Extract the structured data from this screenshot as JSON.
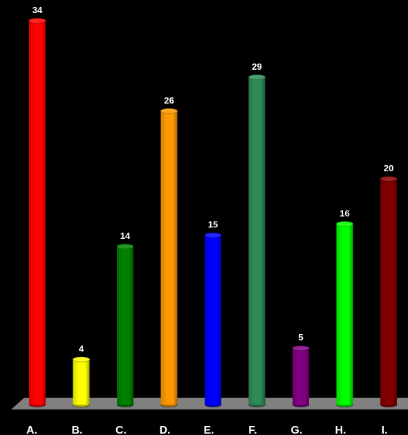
{
  "chart_data": {
    "type": "bar",
    "style": "3d-cylinder",
    "categories": [
      "A.",
      "B.",
      "C.",
      "D.",
      "E.",
      "F.",
      "G.",
      "H.",
      "I."
    ],
    "values": [
      34,
      4,
      14,
      26,
      15,
      29,
      5,
      16,
      20
    ],
    "colors": [
      "#ff0000",
      "#ffff00",
      "#008000",
      "#ff9900",
      "#0000ff",
      "#2e8b57",
      "#800080",
      "#00ff00",
      "#800000"
    ],
    "ylim": [
      0,
      34
    ],
    "grid": false,
    "legend": "none",
    "background": "#000000",
    "floor_color": "#808080",
    "text_color": "#ffffff"
  }
}
